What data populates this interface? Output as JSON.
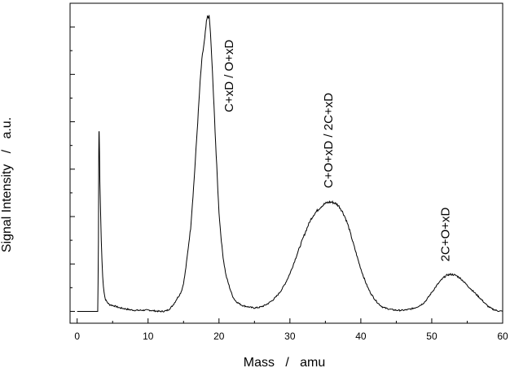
{
  "chart_data": {
    "type": "line",
    "title": "",
    "xlabel": "Mass   /   amu",
    "ylabel": "Signal Intensity   /   a.u.",
    "xlim": [
      -1,
      60
    ],
    "ylim": [
      -0.05,
      1.3
    ],
    "x_ticks": [
      0,
      10,
      20,
      30,
      40,
      50,
      60
    ],
    "x_tick_labels": [
      "0",
      "10",
      "20",
      "30",
      "40",
      "50",
      "60"
    ],
    "y_ticks": [
      0,
      0.1,
      0.2,
      0.3,
      0.4,
      0.5,
      0.6,
      0.7,
      0.8,
      0.9,
      1.0,
      1.1,
      1.2
    ],
    "y_tick_labels": [],
    "grid": false,
    "legend": "none",
    "line_color": "#000000",
    "series": [
      {
        "x": [
          0,
          2.9,
          3.0,
          3.05,
          3.1,
          3.2,
          3.4,
          3.6,
          3.8,
          4.0,
          4.5,
          5,
          6,
          8,
          10,
          12,
          13,
          14,
          15,
          16,
          16.5,
          17,
          17.5,
          18,
          18.3,
          18.6,
          18.8,
          19,
          19.3,
          19.6,
          20,
          20.5,
          21,
          22,
          23,
          24,
          25,
          26,
          27,
          28,
          29,
          30,
          31,
          32,
          33,
          34,
          35,
          36,
          37,
          38,
          39,
          40,
          41,
          42,
          43,
          44,
          45,
          46,
          47,
          48,
          49,
          50,
          51,
          52,
          53,
          54,
          55,
          56,
          57,
          58,
          59,
          60
        ],
        "y": [
          0.0,
          0.0,
          0.3,
          0.68,
          0.76,
          0.55,
          0.3,
          0.15,
          0.08,
          0.05,
          0.03,
          0.025,
          0.015,
          0.005,
          0.005,
          0.0,
          0.01,
          0.05,
          0.12,
          0.35,
          0.56,
          0.8,
          1.03,
          1.15,
          1.23,
          1.24,
          1.17,
          1.05,
          0.86,
          0.66,
          0.42,
          0.25,
          0.15,
          0.06,
          0.03,
          0.02,
          0.015,
          0.02,
          0.035,
          0.06,
          0.1,
          0.16,
          0.24,
          0.32,
          0.39,
          0.43,
          0.455,
          0.46,
          0.44,
          0.38,
          0.28,
          0.18,
          0.1,
          0.05,
          0.02,
          0.01,
          0.005,
          0.005,
          0.01,
          0.02,
          0.04,
          0.08,
          0.12,
          0.15,
          0.155,
          0.14,
          0.11,
          0.08,
          0.05,
          0.02,
          0.005,
          0.0
        ]
      }
    ],
    "annotations": [
      {
        "text": "C+xD / O+xD",
        "x": 22,
        "y": 0.84
      },
      {
        "text": "C+O+xD / 2C+xD",
        "x": 36,
        "y": 0.52
      },
      {
        "text": "2C+O+xD",
        "x": 52.5,
        "y": 0.21
      }
    ]
  }
}
